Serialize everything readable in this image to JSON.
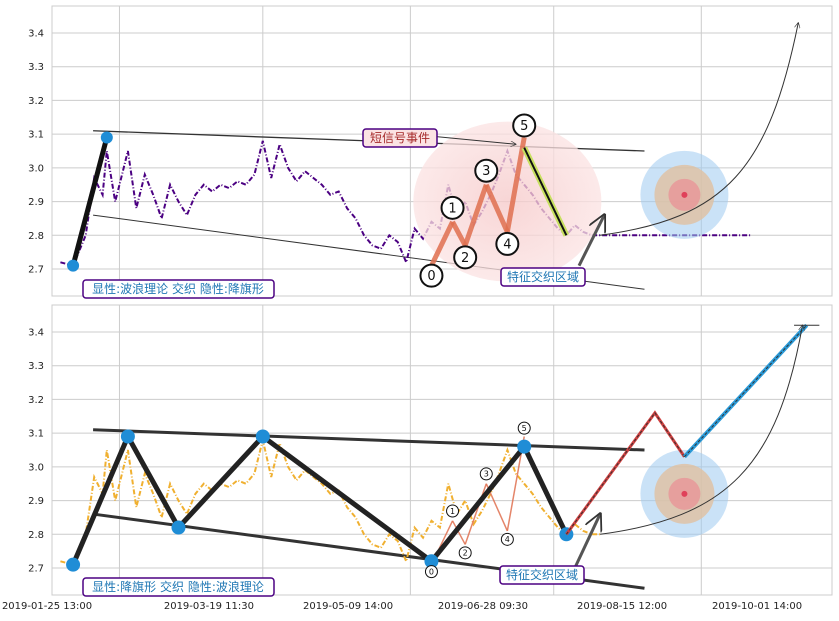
{
  "chart_data": [
    {
      "type": "line",
      "panel": "top",
      "ylim": [
        2.62,
        3.48
      ],
      "y_ticks": [
        "2.7",
        "2.8",
        "2.9",
        "3.0",
        "3.1",
        "3.2",
        "3.3",
        "3.4"
      ],
      "y_tick_values": [
        2.7,
        2.8,
        2.9,
        3.0,
        3.1,
        3.2,
        3.3,
        3.4
      ],
      "grid": true,
      "series": [
        {
          "style": "dash-dot",
          "color": "#4b0082",
          "x": [
            2,
            5,
            8,
            10,
            12,
            13,
            15,
            16,
            18,
            20,
            22,
            24,
            26,
            28,
            30,
            32,
            34,
            36,
            38,
            40,
            42,
            44,
            46,
            48,
            50,
            52,
            54,
            56,
            58,
            60,
            62,
            64,
            66,
            68,
            70,
            72,
            74,
            76,
            78,
            80,
            82,
            84,
            86,
            88,
            90,
            92,
            94,
            96,
            98,
            100,
            102,
            104,
            106,
            108,
            110,
            112,
            114,
            116,
            118,
            120,
            122,
            124,
            126,
            128,
            130,
            132,
            134,
            136,
            138,
            140,
            142,
            144,
            146,
            148,
            150,
            152,
            154,
            156,
            158,
            160,
            162,
            164,
            166
          ],
          "values": [
            2.72,
            2.71,
            2.8,
            2.97,
            2.92,
            3.05,
            2.9,
            2.95,
            3.05,
            2.88,
            2.98,
            2.92,
            2.85,
            2.95,
            2.9,
            2.86,
            2.92,
            2.95,
            2.93,
            2.95,
            2.94,
            2.96,
            2.95,
            2.98,
            3.08,
            2.97,
            3.07,
            3.0,
            2.96,
            2.99,
            2.97,
            2.95,
            2.92,
            2.93,
            2.88,
            2.85,
            2.8,
            2.77,
            2.76,
            2.8,
            2.78,
            2.72,
            2.82,
            2.79,
            2.84,
            2.82,
            2.95,
            2.86,
            2.9,
            2.83,
            2.87,
            2.92,
            2.98,
            3.05,
            2.98,
            2.95,
            2.92,
            2.88,
            2.85,
            2.82,
            2.8,
            2.83,
            2.81,
            2.8,
            2.8,
            2.8,
            2.8,
            2.8,
            2.8,
            2.8,
            2.8,
            2.8,
            2.8,
            2.8,
            2.8,
            2.8,
            2.8,
            2.8,
            2.8,
            2.8,
            2.8,
            2.8,
            2.8
          ]
        }
      ],
      "waves": {
        "points_x": [
          90,
          95,
          98,
          103,
          108,
          112
        ],
        "points_y": [
          2.71,
          2.84,
          2.77,
          2.95,
          2.81,
          3.09
        ],
        "labels": [
          "0",
          "1",
          "2",
          "3",
          "4",
          "5"
        ]
      },
      "flag_top": {
        "x": [
          5,
          141
        ],
        "y": [
          3.11,
          3.05
        ]
      },
      "flag_bottom": {
        "x": [
          5,
          141
        ],
        "y": [
          2.86,
          2.64
        ]
      },
      "annotations": [
        {
          "text": "短信号事件",
          "color": "#a52a2a"
        },
        {
          "text": "特征交织区域",
          "color": "#1f77b4"
        },
        {
          "text": "显性:波浪理论 交织 隐性:降旗形",
          "color": "#1f77b4"
        }
      ]
    },
    {
      "type": "line",
      "panel": "bottom",
      "ylim": [
        2.62,
        3.48
      ],
      "y_ticks": [
        "2.7",
        "2.8",
        "2.9",
        "3.0",
        "3.1",
        "3.2",
        "3.3",
        "3.4"
      ],
      "y_tick_values": [
        2.7,
        2.8,
        2.9,
        3.0,
        3.1,
        3.2,
        3.3,
        3.4
      ],
      "x_ticks": [
        "2019-01-25 13:00",
        "2019-03-19 11:30",
        "2019-05-09 14:00",
        "2019-06-28 09:30",
        "2019-08-15 12:00",
        "2019-10-01 14:00"
      ],
      "grid": true,
      "series": [
        {
          "style": "dash-dot",
          "color": "#f0b030",
          "x": [
            2,
            5,
            8,
            10,
            12,
            13,
            15,
            16,
            18,
            20,
            22,
            24,
            26,
            28,
            30,
            32,
            34,
            36,
            38,
            40,
            42,
            44,
            46,
            48,
            50,
            52,
            54,
            56,
            58,
            60,
            62,
            64,
            66,
            68,
            70,
            72,
            74,
            76,
            78,
            80,
            82,
            84,
            86,
            88,
            90,
            92,
            94,
            96,
            98,
            100,
            102,
            104,
            106,
            108,
            110,
            112,
            114,
            116,
            118,
            120,
            122,
            124,
            126,
            128,
            130
          ],
          "values": [
            2.72,
            2.71,
            2.8,
            2.97,
            2.92,
            3.05,
            2.9,
            2.95,
            3.05,
            2.88,
            2.98,
            2.92,
            2.85,
            2.95,
            2.9,
            2.86,
            2.92,
            2.95,
            2.93,
            2.95,
            2.94,
            2.96,
            2.95,
            2.98,
            3.08,
            2.97,
            3.07,
            3.0,
            2.96,
            2.99,
            2.97,
            2.95,
            2.92,
            2.93,
            2.88,
            2.85,
            2.8,
            2.77,
            2.76,
            2.8,
            2.78,
            2.72,
            2.82,
            2.79,
            2.84,
            2.82,
            2.95,
            2.86,
            2.9,
            2.83,
            2.87,
            2.92,
            2.98,
            3.05,
            2.98,
            2.95,
            2.92,
            2.88,
            2.85,
            2.82,
            2.8,
            2.83,
            2.81,
            2.8,
            2.8
          ]
        }
      ],
      "zigzag": {
        "x": [
          5,
          18,
          30,
          50,
          90,
          112,
          122
        ],
        "y": [
          2.71,
          3.09,
          2.82,
          3.09,
          2.72,
          3.06,
          2.8
        ]
      },
      "waves": {
        "points_x": [
          90,
          95,
          98,
          103,
          108,
          112
        ],
        "points_y": [
          2.71,
          2.84,
          2.77,
          2.95,
          2.81,
          3.09
        ],
        "labels": [
          "0",
          "1",
          "2",
          "3",
          "4",
          "5"
        ]
      },
      "flag_top": {
        "x": [
          5,
          141
        ],
        "y": [
          3.11,
          3.05
        ]
      },
      "flag_bottom": {
        "x": [
          5,
          141
        ],
        "y": [
          2.86,
          2.64
        ]
      },
      "projection_red": {
        "x": [
          122,
          143,
          150
        ],
        "y": [
          2.8,
          3.16,
          3.03
        ]
      },
      "projection_blue": {
        "x": [
          150,
          179
        ],
        "y": [
          3.03,
          3.42
        ]
      },
      "annotations": [
        {
          "text": "特征交织区域",
          "color": "#1f77b4"
        },
        {
          "text": "显性:降旗形 交织 隐性:波浪理论",
          "color": "#1f77b4"
        }
      ]
    }
  ],
  "colors": {
    "bg_panel": "#ffffff",
    "grid": "#cccccc",
    "pivot": "#1f8dd6",
    "label_border": "#4b0082"
  }
}
